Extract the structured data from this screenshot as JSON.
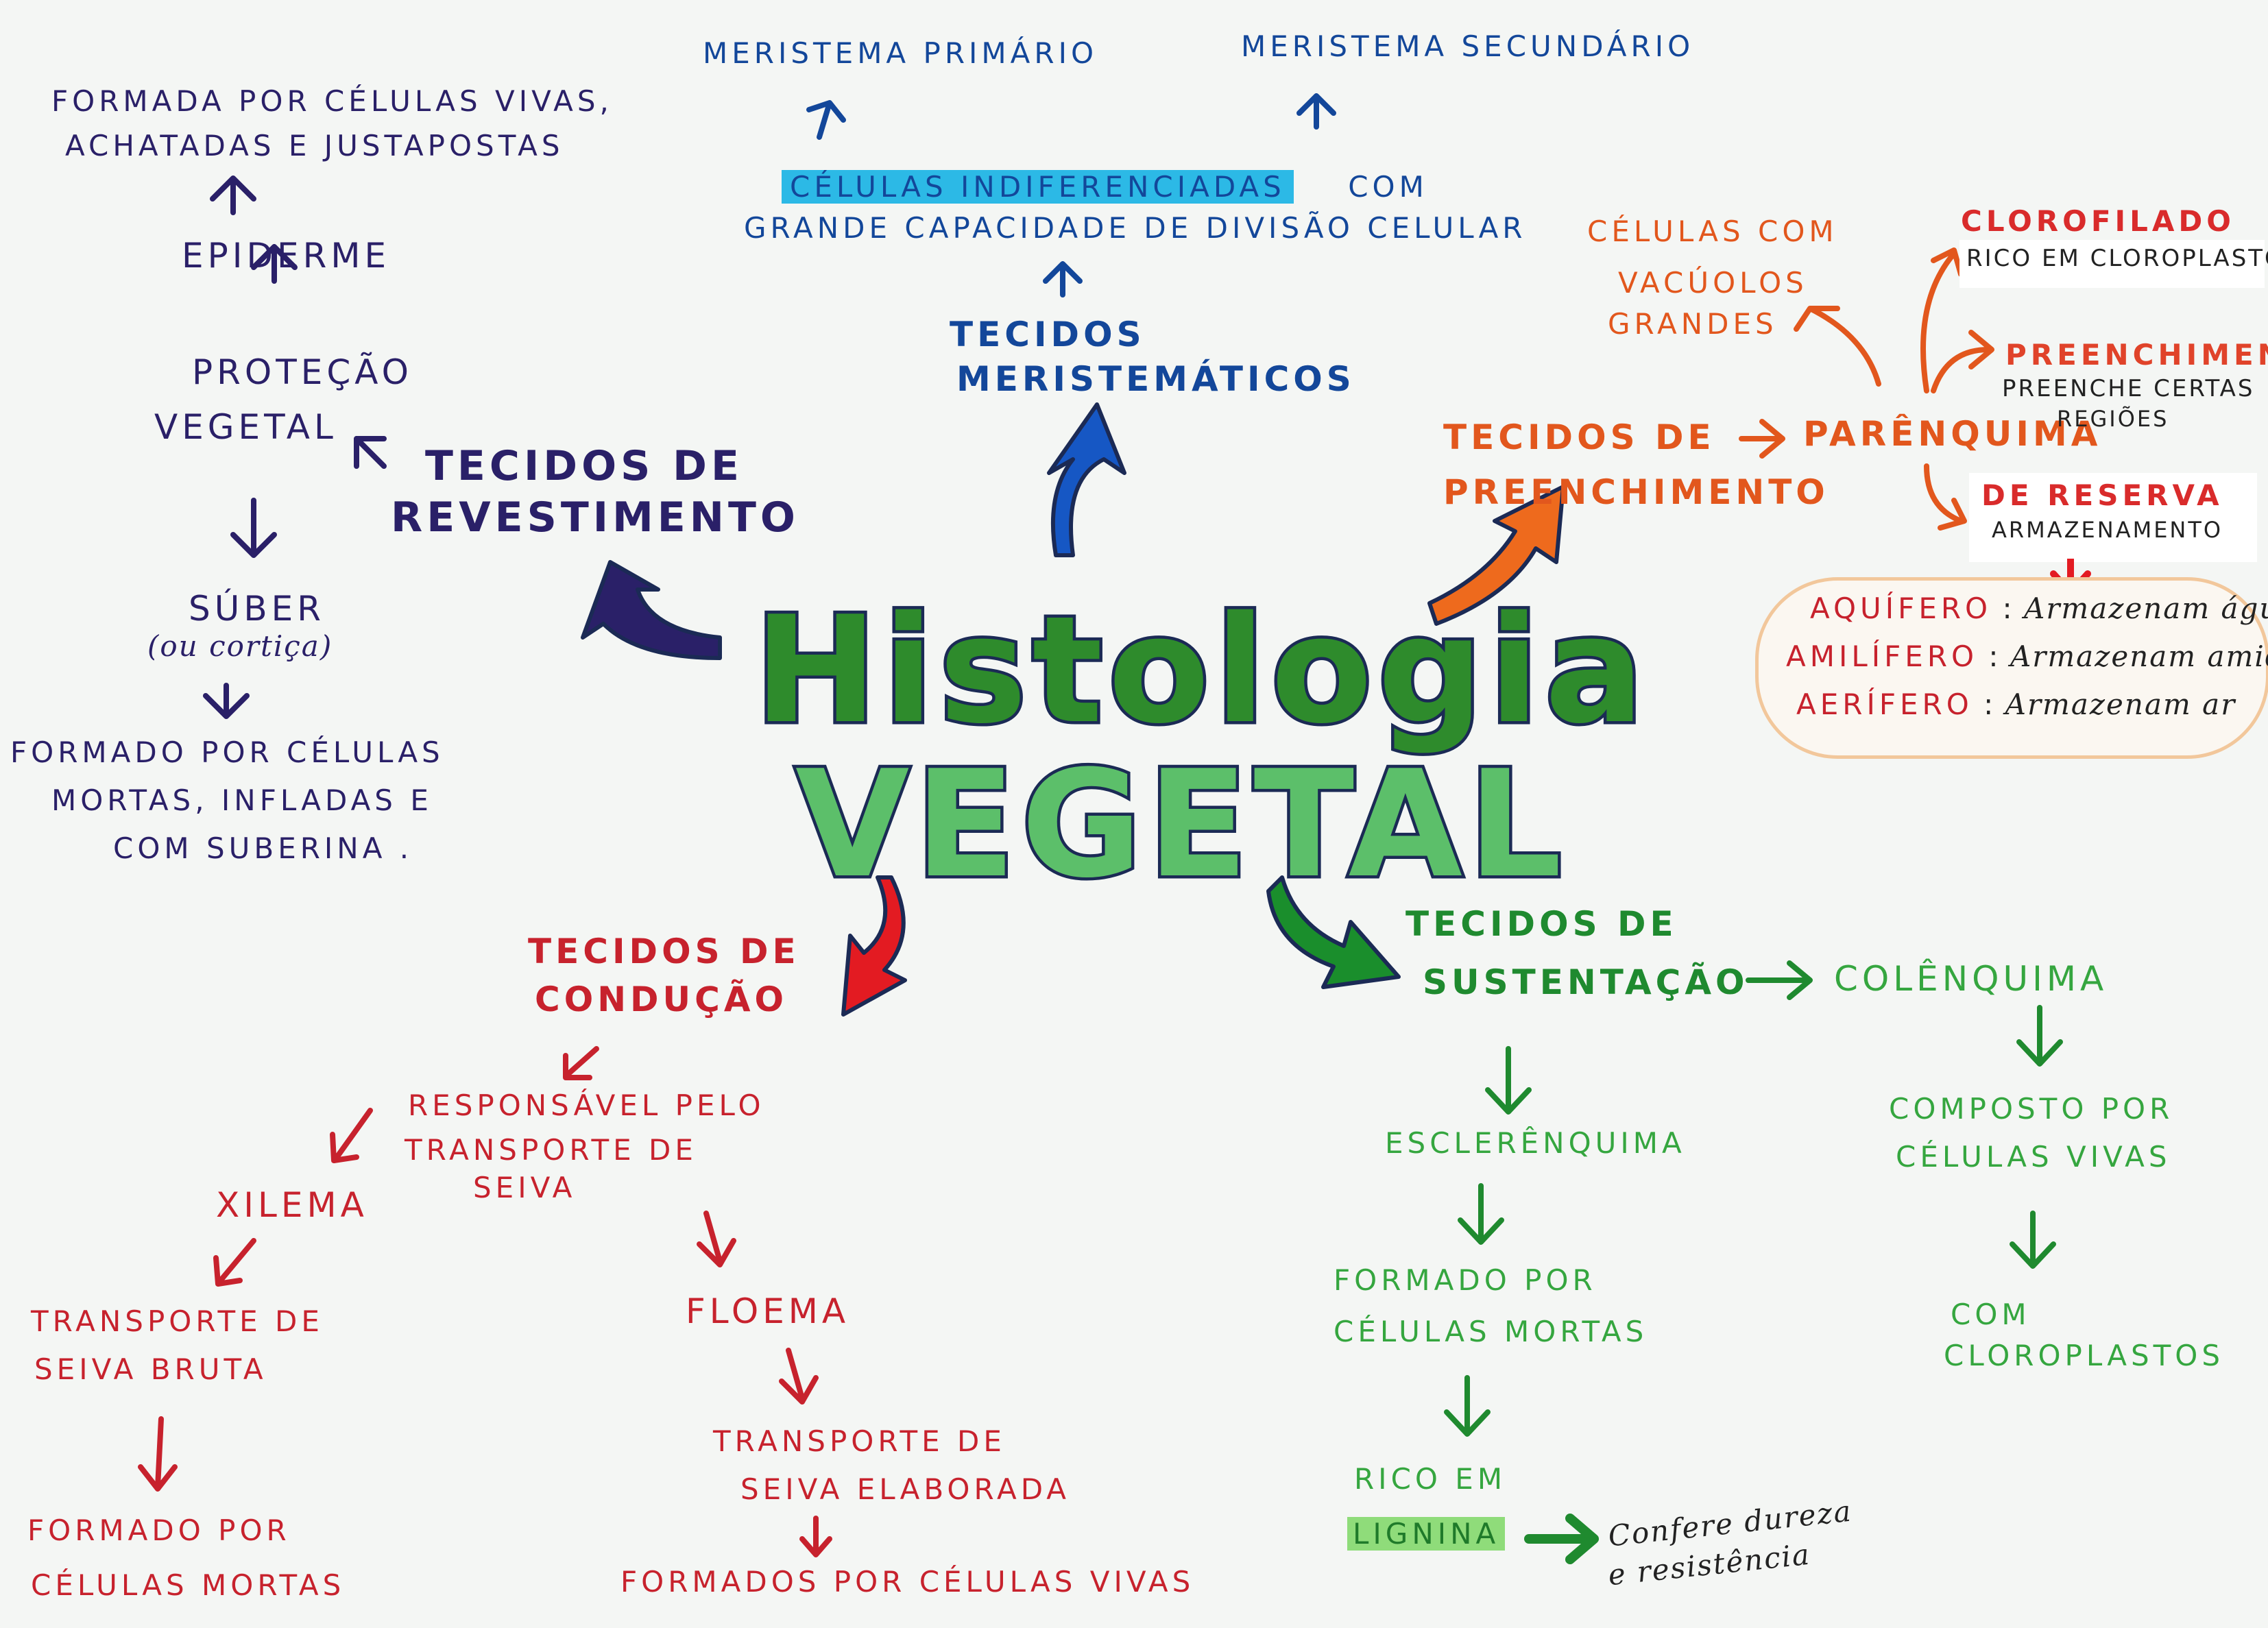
{
  "title": {
    "line1": "Histologia",
    "line2": "Vegetal"
  },
  "colors": {
    "navy": "#2a2068",
    "blue": "#13479a",
    "orange": "#e2571d",
    "red": "#c7222d",
    "green": "#1f8a2f"
  },
  "revestimento": {
    "heading": [
      "Tecidos de",
      "Revestimento"
    ],
    "protecao": [
      "Proteção",
      "Vegetal"
    ],
    "epiderme": "Epiderme",
    "epiderme_desc": [
      "Formada por células vivas,",
      "achatadas e justapostas"
    ],
    "suber": "Súber",
    "suber_alt": "(ou cortiça)",
    "suber_desc": [
      "Formado por células",
      "mortas, infladas e",
      "com suberina ."
    ]
  },
  "meristematicos": {
    "heading": [
      "Tecidos",
      "Meristemáticos"
    ],
    "desc_highlight": "Células indiferenciadas",
    "desc_rest": "com",
    "desc_line2": "grande capacidade de divisão celular",
    "primario": "Meristema Primário",
    "secundario": "Meristema Secundário"
  },
  "preenchimento": {
    "heading": [
      "Tecidos de",
      "Preenchimento"
    ],
    "parenquima": "Parênquima",
    "vacuolos": [
      "Células com",
      "vacúolos",
      "grandes"
    ],
    "clorofilado": "Clorofilado",
    "clorofilado_desc": "Rico em cloroplasto",
    "preenchimento": "Preenchimento",
    "preenchimento_desc": [
      "preenche certas",
      "regiões"
    ],
    "reserva": "De reserva",
    "reserva_desc": "Armazenamento",
    "tipos": [
      {
        "name": "Aquífero",
        "desc": "Armazenam água"
      },
      {
        "name": "Amilífero",
        "desc": "Armazenam amido"
      },
      {
        "name": "Aerífero",
        "desc": "Armazenam ar"
      }
    ]
  },
  "conducao": {
    "heading": [
      "Tecidos de",
      "Condução"
    ],
    "desc": [
      "Responsável pelo",
      "transporte de",
      "seiva"
    ],
    "xilema": "Xilema",
    "xilema_desc": [
      "Transporte de",
      "seiva bruta"
    ],
    "xilema_cel": [
      "Formado por",
      "células mortas"
    ],
    "floema": "Floema",
    "floema_desc": [
      "Transporte de",
      "seiva elaborada"
    ],
    "floema_cel": "Formados por células vivas"
  },
  "sustentacao": {
    "heading": [
      "Tecidos de",
      "Sustentação"
    ],
    "colenquima": "Colênquima",
    "colenquima_desc": [
      "Composto por",
      "células vivas"
    ],
    "colenquima_clor": [
      "Com",
      "cloroplastos"
    ],
    "esclerenquima": "Esclerênquima",
    "escl_desc": [
      "Formado por",
      "células mortas"
    ],
    "rico": "Rico em",
    "lignina": "Lignina",
    "lignina_desc": [
      "Confere dureza",
      "e resistência"
    ]
  }
}
